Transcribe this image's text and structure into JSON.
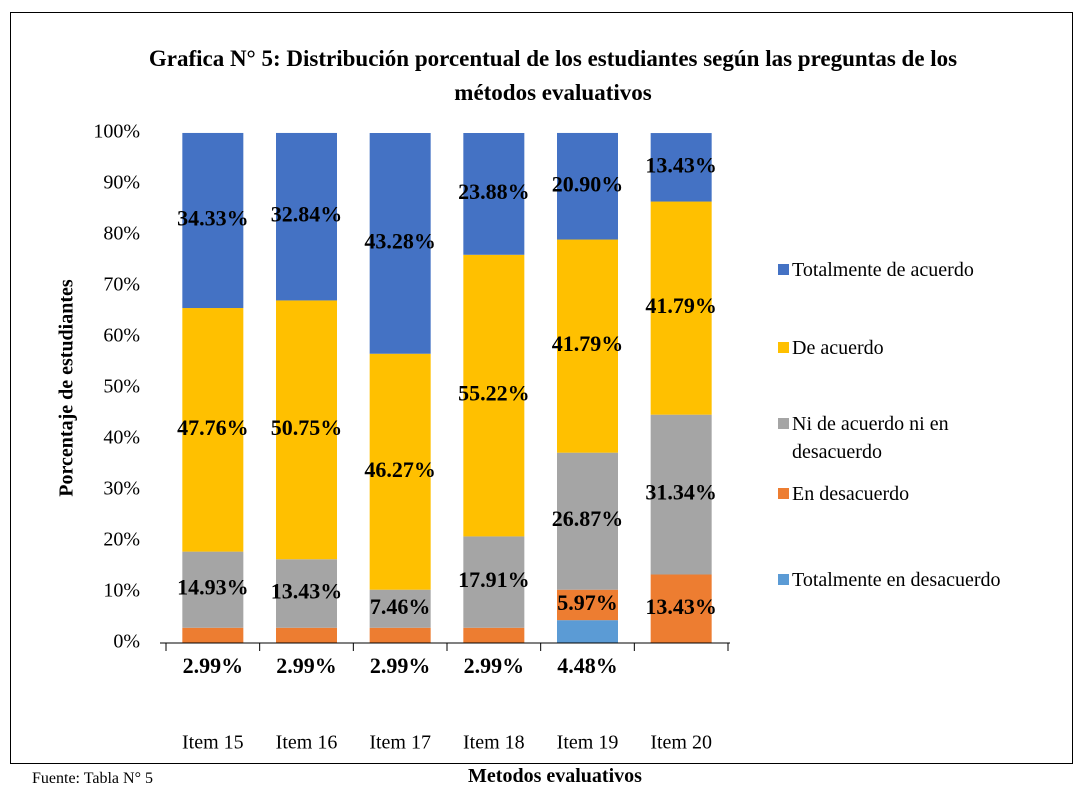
{
  "chart_data": {
    "type": "stacked_bar",
    "title": "Grafica N° 5: Distribución porcentual de los estudiantes según las preguntas de los métodos evaluativos",
    "y_label": "Porcentaje de estudiantes",
    "x_label": "Metodos evaluativos",
    "note": "Fuente: Tabla N° 5",
    "categories": [
      "Item 15",
      "Item 16",
      "Item 17",
      "Item 18",
      "Item 19",
      "Item 20"
    ],
    "series": [
      {
        "name": "Totalmente en desacuerdo",
        "color": "#5b9bd5",
        "values": [
          null,
          null,
          null,
          null,
          4.48,
          null
        ],
        "value_labels": [
          null,
          null,
          null,
          null,
          "4.48%",
          null
        ]
      },
      {
        "name": "En desacuerdo",
        "color": "#ed7d31",
        "values": [
          2.99,
          2.99,
          2.99,
          2.99,
          5.97,
          13.43
        ],
        "value_labels": [
          "2.99%",
          "2.99%",
          "2.99%",
          "2.99%",
          "5.97%",
          "13.43%"
        ]
      },
      {
        "name": "Ni de acuerdo ni en desacuerdo",
        "color": "#a5a5a5",
        "values": [
          14.93,
          13.43,
          7.46,
          17.91,
          26.87,
          31.34
        ],
        "value_labels": [
          "14.93%",
          "13.43%",
          "7.46%",
          "17.91%",
          "26.87%",
          "31.34%"
        ]
      },
      {
        "name": "De acuerdo",
        "color": "#ffc000",
        "values": [
          47.76,
          50.75,
          46.27,
          55.22,
          41.79,
          41.79
        ],
        "value_labels": [
          "47.76%",
          "50.75%",
          "46.27%",
          "55.22%",
          "41.79%",
          "41.79%"
        ]
      },
      {
        "name": "Totalmente de acuerdo",
        "color": "#4472c4",
        "values": [
          34.33,
          32.84,
          43.28,
          23.88,
          20.9,
          13.43
        ],
        "value_labels": [
          "34.33%",
          "32.84%",
          "43.28%",
          "23.88%",
          "20.90%",
          "13.43%"
        ]
      }
    ],
    "ylim": [
      0,
      100
    ],
    "yticks": [
      {
        "value": 0,
        "label": "0%"
      },
      {
        "value": 10,
        "label": "10%"
      },
      {
        "value": 20,
        "label": "20%"
      },
      {
        "value": 30,
        "label": "30%"
      },
      {
        "value": 40,
        "label": "40%"
      },
      {
        "value": 50,
        "label": "50%"
      },
      {
        "value": 60,
        "label": "60%"
      },
      {
        "value": 70,
        "label": "70%"
      },
      {
        "value": 80,
        "label": "80%"
      },
      {
        "value": 90,
        "label": "90%"
      },
      {
        "value": 100,
        "label": "100%"
      }
    ],
    "grid": false,
    "legend": "right"
  }
}
